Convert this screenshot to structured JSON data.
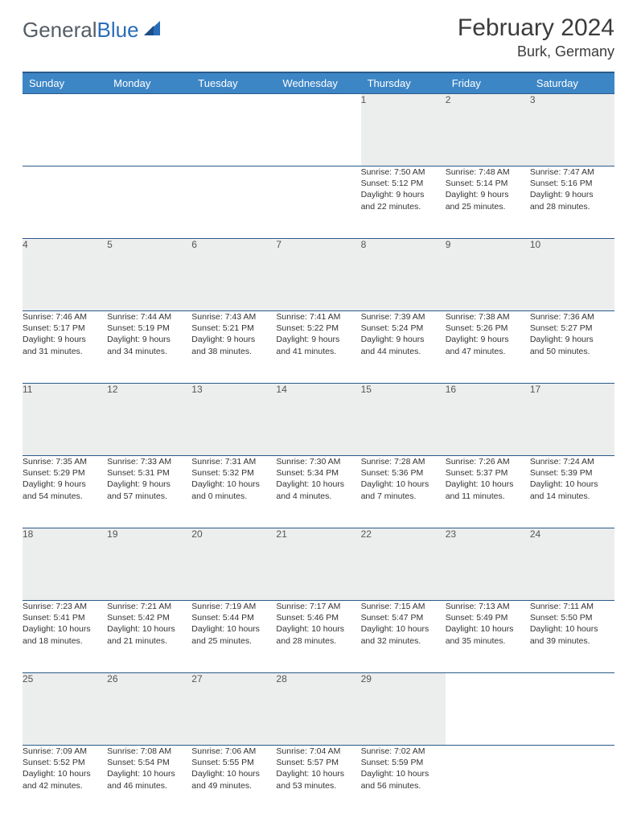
{
  "logo": {
    "word1": "General",
    "word2": "Blue"
  },
  "title": "February 2024",
  "location": "Burk, Germany",
  "colors": {
    "header_bg": "#3d86c6",
    "header_border": "#2a5a8a",
    "daynum_bg": "#eceded",
    "text": "#333333",
    "logo_gray": "#555d66",
    "logo_blue": "#2a6db8"
  },
  "weekdays": [
    "Sunday",
    "Monday",
    "Tuesday",
    "Wednesday",
    "Thursday",
    "Friday",
    "Saturday"
  ],
  "weeks": [
    [
      null,
      null,
      null,
      null,
      {
        "n": "1",
        "sr": "Sunrise: 7:50 AM",
        "ss": "Sunset: 5:12 PM",
        "d1": "Daylight: 9 hours",
        "d2": "and 22 minutes."
      },
      {
        "n": "2",
        "sr": "Sunrise: 7:48 AM",
        "ss": "Sunset: 5:14 PM",
        "d1": "Daylight: 9 hours",
        "d2": "and 25 minutes."
      },
      {
        "n": "3",
        "sr": "Sunrise: 7:47 AM",
        "ss": "Sunset: 5:16 PM",
        "d1": "Daylight: 9 hours",
        "d2": "and 28 minutes."
      }
    ],
    [
      {
        "n": "4",
        "sr": "Sunrise: 7:46 AM",
        "ss": "Sunset: 5:17 PM",
        "d1": "Daylight: 9 hours",
        "d2": "and 31 minutes."
      },
      {
        "n": "5",
        "sr": "Sunrise: 7:44 AM",
        "ss": "Sunset: 5:19 PM",
        "d1": "Daylight: 9 hours",
        "d2": "and 34 minutes."
      },
      {
        "n": "6",
        "sr": "Sunrise: 7:43 AM",
        "ss": "Sunset: 5:21 PM",
        "d1": "Daylight: 9 hours",
        "d2": "and 38 minutes."
      },
      {
        "n": "7",
        "sr": "Sunrise: 7:41 AM",
        "ss": "Sunset: 5:22 PM",
        "d1": "Daylight: 9 hours",
        "d2": "and 41 minutes."
      },
      {
        "n": "8",
        "sr": "Sunrise: 7:39 AM",
        "ss": "Sunset: 5:24 PM",
        "d1": "Daylight: 9 hours",
        "d2": "and 44 minutes."
      },
      {
        "n": "9",
        "sr": "Sunrise: 7:38 AM",
        "ss": "Sunset: 5:26 PM",
        "d1": "Daylight: 9 hours",
        "d2": "and 47 minutes."
      },
      {
        "n": "10",
        "sr": "Sunrise: 7:36 AM",
        "ss": "Sunset: 5:27 PM",
        "d1": "Daylight: 9 hours",
        "d2": "and 50 minutes."
      }
    ],
    [
      {
        "n": "11",
        "sr": "Sunrise: 7:35 AM",
        "ss": "Sunset: 5:29 PM",
        "d1": "Daylight: 9 hours",
        "d2": "and 54 minutes."
      },
      {
        "n": "12",
        "sr": "Sunrise: 7:33 AM",
        "ss": "Sunset: 5:31 PM",
        "d1": "Daylight: 9 hours",
        "d2": "and 57 minutes."
      },
      {
        "n": "13",
        "sr": "Sunrise: 7:31 AM",
        "ss": "Sunset: 5:32 PM",
        "d1": "Daylight: 10 hours",
        "d2": "and 0 minutes."
      },
      {
        "n": "14",
        "sr": "Sunrise: 7:30 AM",
        "ss": "Sunset: 5:34 PM",
        "d1": "Daylight: 10 hours",
        "d2": "and 4 minutes."
      },
      {
        "n": "15",
        "sr": "Sunrise: 7:28 AM",
        "ss": "Sunset: 5:36 PM",
        "d1": "Daylight: 10 hours",
        "d2": "and 7 minutes."
      },
      {
        "n": "16",
        "sr": "Sunrise: 7:26 AM",
        "ss": "Sunset: 5:37 PM",
        "d1": "Daylight: 10 hours",
        "d2": "and 11 minutes."
      },
      {
        "n": "17",
        "sr": "Sunrise: 7:24 AM",
        "ss": "Sunset: 5:39 PM",
        "d1": "Daylight: 10 hours",
        "d2": "and 14 minutes."
      }
    ],
    [
      {
        "n": "18",
        "sr": "Sunrise: 7:23 AM",
        "ss": "Sunset: 5:41 PM",
        "d1": "Daylight: 10 hours",
        "d2": "and 18 minutes."
      },
      {
        "n": "19",
        "sr": "Sunrise: 7:21 AM",
        "ss": "Sunset: 5:42 PM",
        "d1": "Daylight: 10 hours",
        "d2": "and 21 minutes."
      },
      {
        "n": "20",
        "sr": "Sunrise: 7:19 AM",
        "ss": "Sunset: 5:44 PM",
        "d1": "Daylight: 10 hours",
        "d2": "and 25 minutes."
      },
      {
        "n": "21",
        "sr": "Sunrise: 7:17 AM",
        "ss": "Sunset: 5:46 PM",
        "d1": "Daylight: 10 hours",
        "d2": "and 28 minutes."
      },
      {
        "n": "22",
        "sr": "Sunrise: 7:15 AM",
        "ss": "Sunset: 5:47 PM",
        "d1": "Daylight: 10 hours",
        "d2": "and 32 minutes."
      },
      {
        "n": "23",
        "sr": "Sunrise: 7:13 AM",
        "ss": "Sunset: 5:49 PM",
        "d1": "Daylight: 10 hours",
        "d2": "and 35 minutes."
      },
      {
        "n": "24",
        "sr": "Sunrise: 7:11 AM",
        "ss": "Sunset: 5:50 PM",
        "d1": "Daylight: 10 hours",
        "d2": "and 39 minutes."
      }
    ],
    [
      {
        "n": "25",
        "sr": "Sunrise: 7:09 AM",
        "ss": "Sunset: 5:52 PM",
        "d1": "Daylight: 10 hours",
        "d2": "and 42 minutes."
      },
      {
        "n": "26",
        "sr": "Sunrise: 7:08 AM",
        "ss": "Sunset: 5:54 PM",
        "d1": "Daylight: 10 hours",
        "d2": "and 46 minutes."
      },
      {
        "n": "27",
        "sr": "Sunrise: 7:06 AM",
        "ss": "Sunset: 5:55 PM",
        "d1": "Daylight: 10 hours",
        "d2": "and 49 minutes."
      },
      {
        "n": "28",
        "sr": "Sunrise: 7:04 AM",
        "ss": "Sunset: 5:57 PM",
        "d1": "Daylight: 10 hours",
        "d2": "and 53 minutes."
      },
      {
        "n": "29",
        "sr": "Sunrise: 7:02 AM",
        "ss": "Sunset: 5:59 PM",
        "d1": "Daylight: 10 hours",
        "d2": "and 56 minutes."
      },
      null,
      null
    ]
  ]
}
